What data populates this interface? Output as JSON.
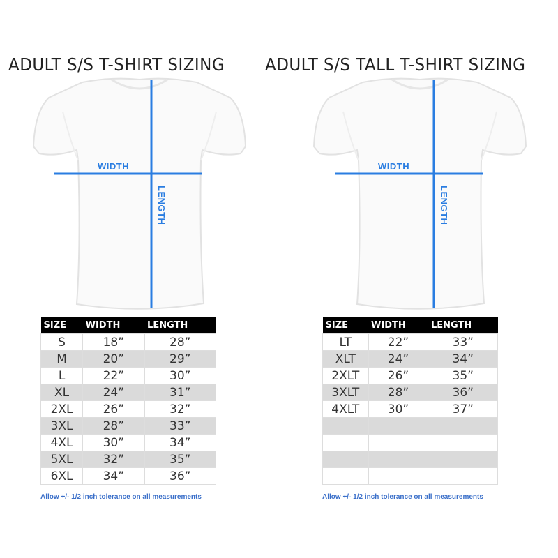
{
  "charts": [
    {
      "title": "ADULT S/S T-SHIRT SIZING",
      "width_label": "WIDTH",
      "length_label": "LENGTH",
      "headers": [
        "SIZE",
        "WIDTH",
        "LENGTH"
      ],
      "rows": [
        [
          "S",
          "18”",
          "28”"
        ],
        [
          "M",
          "20”",
          "29”"
        ],
        [
          "L",
          "22”",
          "30”"
        ],
        [
          "XL",
          "24”",
          "31”"
        ],
        [
          "2XL",
          "26”",
          "32”"
        ],
        [
          "3XL",
          "28”",
          "33”"
        ],
        [
          "4XL",
          "30”",
          "34”"
        ],
        [
          "5XL",
          "32”",
          "35”"
        ],
        [
          "6XL",
          "34”",
          "36”"
        ]
      ],
      "note": "Allow +/- 1/2 inch tolerance on all measurements"
    },
    {
      "title": "ADULT S/S TALL T-SHIRT SIZING",
      "width_label": "WIDTH",
      "length_label": "LENGTH",
      "headers": [
        "SIZE",
        "WIDTH",
        "LENGTH"
      ],
      "rows": [
        [
          "LT",
          "22”",
          "33”"
        ],
        [
          "XLT",
          "24”",
          "34”"
        ],
        [
          "2XLT",
          "26”",
          "35”"
        ],
        [
          "3XLT",
          "28”",
          "36”"
        ],
        [
          "4XLT",
          "30”",
          "37”"
        ],
        [
          "",
          "",
          ""
        ],
        [
          "",
          "",
          ""
        ],
        [
          "",
          "",
          ""
        ],
        [
          "",
          "",
          ""
        ]
      ],
      "note": "Allow +/- 1/2 inch tolerance on all measurements"
    }
  ],
  "colors": {
    "measure_line": "#2a7de1",
    "header_bg": "#000000",
    "alt_row": "#dadada",
    "note": "#3a6fc9"
  }
}
